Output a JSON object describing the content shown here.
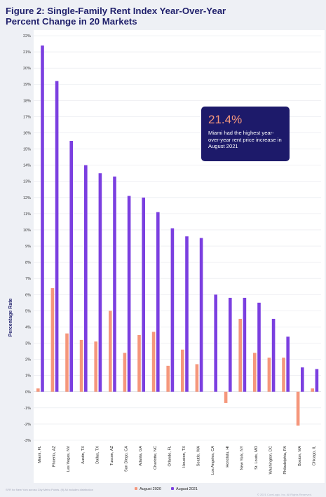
{
  "title": {
    "line1": "Figure 2: Single-Family Rent Index Year-Over-Year",
    "line2": "Percent Change in 20 Markets"
  },
  "callout": {
    "value": "21.4%",
    "text": "Miami had the highest year-over-year rent price increase in August 2021"
  },
  "footnote": "SFR for New York across City Metro Points. (9) All includes distribution",
  "credit": "© 2021 CoreLogic, Inc. All Rights Reserved.",
  "colors": {
    "background": "#eef0f5",
    "plot_background": "#ffffff",
    "title": "#1f1f6b",
    "aug2020": "#f5977c",
    "aug2021": "#7b3fe0",
    "callout_bg": "#1d1a6a",
    "grid": "#e6e8ee"
  },
  "chart_data": {
    "type": "bar",
    "title": "Figure 2: Single-Family Rent Index Year-Over-Year Percent Change in 20 Markets",
    "ylabel": "Percentage Rate",
    "xlabel": "",
    "ylim": [
      -3,
      22
    ],
    "yticks": [
      -3,
      -2,
      -1,
      0,
      1,
      2,
      3,
      4,
      5,
      6,
      7,
      8,
      9,
      10,
      11,
      12,
      13,
      14,
      15,
      16,
      17,
      18,
      19,
      20,
      21,
      22
    ],
    "grid": true,
    "legend": "bottom",
    "categories": [
      "Miami, FL",
      "Phoenix, AZ",
      "Las Vegas, NV",
      "Austin, TX",
      "Dallas, TX",
      "Tuscon, AZ",
      "San Diego, CA",
      "Atlanta, GA",
      "Charlotte, NC",
      "Orlando, FL",
      "Houston, TX",
      "Seattle, WA",
      "Los Angeles, CA",
      "Honolulu, HI",
      "New York, NY",
      "St. Louis, MO",
      "Washington, DC",
      "Philadelphia, PA",
      "Boston, MA",
      "Chicago, IL"
    ],
    "series": [
      {
        "name": "August 2020",
        "color": "#f5977c",
        "values": [
          0.2,
          6.4,
          3.6,
          3.2,
          3.1,
          5.0,
          2.4,
          3.5,
          3.7,
          1.6,
          2.6,
          1.7,
          0.0,
          -0.7,
          4.5,
          2.4,
          2.1,
          2.1,
          -2.1,
          0.2
        ]
      },
      {
        "name": "August 2021",
        "color": "#7b3fe0",
        "values": [
          21.4,
          19.2,
          15.5,
          14.0,
          13.5,
          13.3,
          12.1,
          12.0,
          11.1,
          10.1,
          9.6,
          9.5,
          6.0,
          5.8,
          5.8,
          5.5,
          4.5,
          3.4,
          1.5,
          1.4
        ]
      }
    ]
  }
}
